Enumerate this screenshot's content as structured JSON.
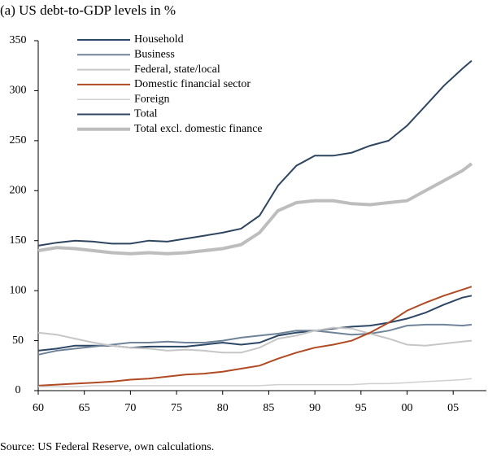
{
  "chart_data": {
    "type": "line",
    "title": "(a) US debt-to-GDP levels in %",
    "note": "Source: US Federal Reserve, own calculations.",
    "x": [
      1960,
      1962,
      1964,
      1966,
      1968,
      1970,
      1972,
      1974,
      1976,
      1978,
      1980,
      1982,
      1984,
      1986,
      1988,
      1990,
      1992,
      1994,
      1996,
      1998,
      2000,
      2002,
      2004,
      2006,
      2007
    ],
    "series": [
      {
        "name": "Household",
        "color": "#2c4766",
        "width": 2,
        "values": [
          40,
          42,
          45,
          45,
          45,
          43,
          44,
          44,
          44,
          46,
          48,
          46,
          48,
          55,
          58,
          60,
          62,
          64,
          65,
          68,
          72,
          78,
          86,
          93,
          95
        ]
      },
      {
        "name": "Business",
        "color": "#6f8499",
        "width": 2,
        "values": [
          36,
          40,
          42,
          44,
          46,
          48,
          48,
          49,
          48,
          48,
          50,
          53,
          55,
          57,
          60,
          60,
          58,
          56,
          57,
          60,
          65,
          66,
          66,
          65,
          66
        ]
      },
      {
        "name": "Federal, state/local",
        "color": "#c6c6c6",
        "width": 2,
        "values": [
          58,
          56,
          52,
          48,
          45,
          43,
          42,
          40,
          41,
          40,
          38,
          38,
          43,
          52,
          55,
          60,
          63,
          62,
          57,
          52,
          46,
          45,
          47,
          49,
          50
        ]
      },
      {
        "name": "Domestic financial sector",
        "color": "#b04a22",
        "width": 2,
        "values": [
          5,
          6,
          7,
          8,
          9,
          11,
          12,
          14,
          16,
          17,
          19,
          22,
          25,
          32,
          38,
          43,
          46,
          50,
          58,
          68,
          80,
          88,
          95,
          101,
          104
        ]
      },
      {
        "name": "Foreign",
        "color": "#cfcfcf",
        "width": 1.5,
        "values": [
          4,
          4,
          4,
          5,
          5,
          5,
          5,
          5,
          5,
          5,
          5,
          5,
          5,
          6,
          6,
          6,
          6,
          6,
          7,
          7,
          8,
          9,
          10,
          11,
          12
        ]
      },
      {
        "name": "Total",
        "color": "#2e4560",
        "width": 2,
        "values": [
          145,
          148,
          150,
          149,
          147,
          147,
          150,
          149,
          152,
          155,
          158,
          162,
          175,
          205,
          225,
          235,
          235,
          238,
          245,
          250,
          265,
          285,
          305,
          322,
          330
        ]
      },
      {
        "name": "Total excl. domestic finance",
        "color": "#bdbdbd",
        "width": 4,
        "values": [
          140,
          143,
          142,
          140,
          138,
          137,
          138,
          137,
          138,
          140,
          142,
          146,
          158,
          180,
          188,
          190,
          190,
          187,
          186,
          188,
          190,
          200,
          210,
          220,
          227
        ]
      }
    ],
    "xlim": [
      1960,
      2008.6
    ],
    "xticks": [
      {
        "value": 1960,
        "label": "60"
      },
      {
        "value": 1965,
        "label": "65"
      },
      {
        "value": 1970,
        "label": "70"
      },
      {
        "value": 1975,
        "label": "75"
      },
      {
        "value": 1980,
        "label": "80"
      },
      {
        "value": 1985,
        "label": "85"
      },
      {
        "value": 1990,
        "label": "90"
      },
      {
        "value": 1995,
        "label": "95"
      },
      {
        "value": 2000,
        "label": "00"
      },
      {
        "value": 2005,
        "label": "05"
      }
    ],
    "ylim": [
      0,
      350
    ],
    "yticks": [
      0,
      50,
      100,
      150,
      200,
      250,
      300,
      350
    ],
    "grid": false
  }
}
